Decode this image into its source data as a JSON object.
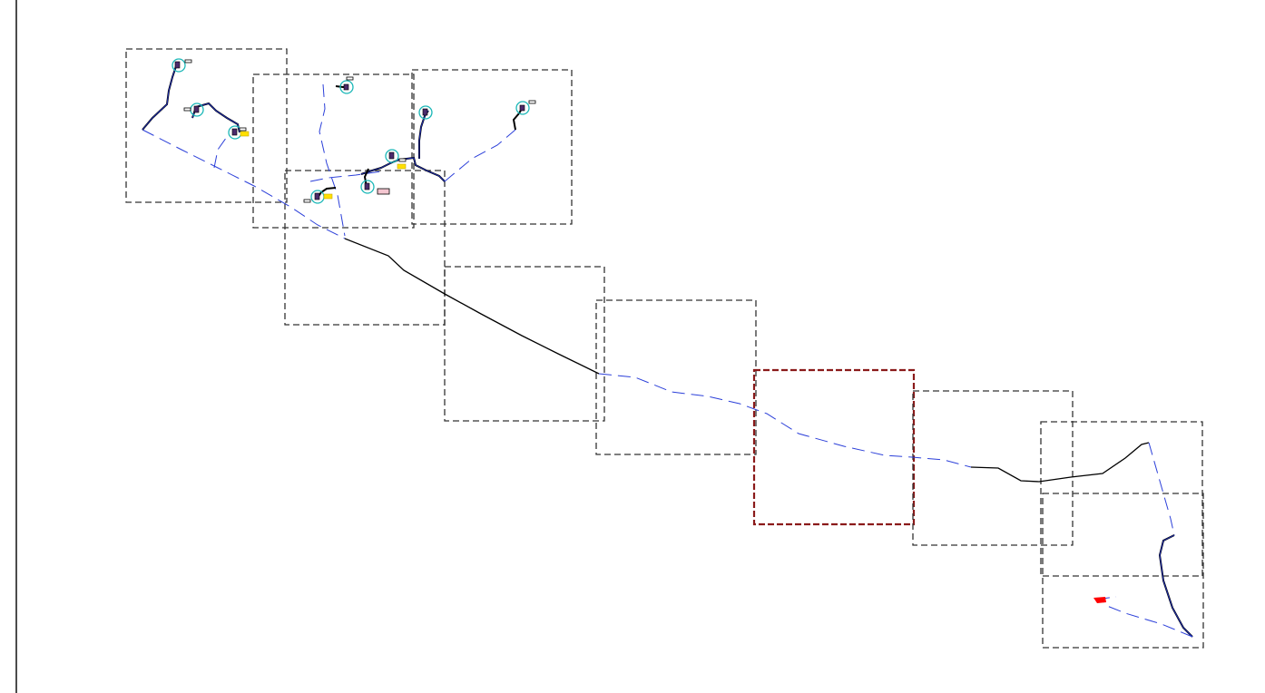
{
  "diagram": {
    "frames": [
      {
        "id": "frame-1",
        "selected": false
      },
      {
        "id": "frame-2",
        "selected": false
      },
      {
        "id": "frame-3",
        "selected": false
      },
      {
        "id": "frame-4",
        "selected": false
      },
      {
        "id": "frame-5",
        "selected": false
      },
      {
        "id": "frame-6",
        "selected": false
      },
      {
        "id": "frame-7",
        "selected": true
      },
      {
        "id": "frame-8",
        "selected": false
      },
      {
        "id": "frame-9",
        "selected": false
      },
      {
        "id": "frame-10",
        "selected": false
      }
    ],
    "colors": {
      "frame": "#333333",
      "selected_frame": "#8b1a1a",
      "dashed_route": "#2b3fd9",
      "solid_route": "#000000",
      "marker_ring": "#1ab7b7",
      "label_yellow": "#ffe000",
      "label_pink": "#f4c6d0",
      "end_marker": "#ff0000"
    }
  }
}
